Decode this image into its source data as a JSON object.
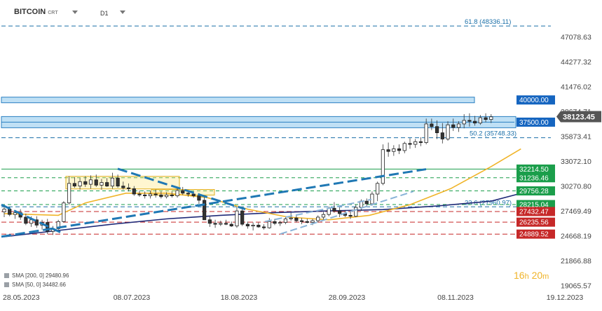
{
  "header": {
    "symbol": "BITCOIN",
    "symbol_sub": "CRT",
    "timeframe": "D1"
  },
  "indicators": [
    {
      "label": "SMA [200, 0]",
      "value": "29480.96",
      "color": "#1f2a78"
    },
    {
      "label": "SMA [50, 0]",
      "value": "34482.66",
      "color": "#f0b429"
    }
  ],
  "timer": {
    "hours": "16",
    "h_unit": "h",
    "minutes": "20",
    "m_unit": "m"
  },
  "chart_data": {
    "type": "candlestick",
    "title": "",
    "ylim": [
      19065.57,
      50000
    ],
    "y_ticks": [
      "47078.63",
      "44277.32",
      "41476.02",
      "38674.71",
      "35873.41",
      "33072.10",
      "30270.80",
      "27469.49",
      "24668.19",
      "21866.88",
      "19065.57"
    ],
    "x_ticks": [
      "28.05.2023",
      "08.07.2023",
      "18.08.2023",
      "28.09.2023",
      "08.11.2023",
      "19.12.2023"
    ],
    "last_price": {
      "label": "38123.45",
      "value": 38123.45,
      "color": "#555555"
    },
    "fib_levels": [
      {
        "label": "61.8 (48336.11)",
        "value": 48336.11
      },
      {
        "label": "50.2 (35748.33)",
        "value": 35748.33
      },
      {
        "label": "23.6 (27960.97)",
        "value": 27960.97
      }
    ],
    "resistance_zones": [
      {
        "label": "40000.00",
        "value": 40000.0,
        "color": "#1565c0"
      },
      {
        "label": "37500.00",
        "value": 37500.0,
        "color": "#1565c0"
      }
    ],
    "support_levels": [
      {
        "label": "32214.50",
        "value": 32214.5,
        "color": "#1b9e4b"
      },
      {
        "label": "31236.46",
        "value": 31236.46,
        "color": "#1b9e4b"
      },
      {
        "label": "29756.28",
        "value": 29756.28,
        "color": "#1b9e4b"
      },
      {
        "label": "28215.04",
        "value": 28215.04,
        "color": "#1b9e4b"
      },
      {
        "label": "27432.47",
        "value": 27432.47,
        "color": "#c62828"
      },
      {
        "label": "26235.56",
        "value": 26235.56,
        "color": "#c62828"
      },
      {
        "label": "24889.52",
        "value": 24889.52,
        "color": "#c62828"
      }
    ],
    "sma200": [
      {
        "d": 0,
        "v": 24600
      },
      {
        "d": 20,
        "v": 25300
      },
      {
        "d": 40,
        "v": 26000
      },
      {
        "d": 60,
        "v": 26600
      },
      {
        "d": 80,
        "v": 27000
      },
      {
        "d": 100,
        "v": 27300
      },
      {
        "d": 120,
        "v": 27500
      },
      {
        "d": 140,
        "v": 27650
      },
      {
        "d": 160,
        "v": 28050
      },
      {
        "d": 180,
        "v": 28600
      },
      {
        "d": 191,
        "v": 29480.96
      }
    ],
    "sma50": [
      {
        "d": 0,
        "v": 27200
      },
      {
        "d": 20,
        "v": 27000
      },
      {
        "d": 30,
        "v": 28400
      },
      {
        "d": 45,
        "v": 29500
      },
      {
        "d": 60,
        "v": 29500
      },
      {
        "d": 75,
        "v": 29000
      },
      {
        "d": 90,
        "v": 27700
      },
      {
        "d": 105,
        "v": 26800
      },
      {
        "d": 120,
        "v": 26500
      },
      {
        "d": 135,
        "v": 27000
      },
      {
        "d": 150,
        "v": 28200
      },
      {
        "d": 165,
        "v": 30000
      },
      {
        "d": 180,
        "v": 32500
      },
      {
        "d": 191,
        "v": 34482.66
      }
    ],
    "candles_ohlc": [
      {
        "d": 0,
        "o": 27400,
        "h": 28100,
        "l": 26800,
        "c": 27700
      },
      {
        "d": 2,
        "o": 27700,
        "h": 27950,
        "l": 26900,
        "c": 27100
      },
      {
        "d": 4,
        "o": 27100,
        "h": 27600,
        "l": 26600,
        "c": 27300
      },
      {
        "d": 6,
        "o": 27300,
        "h": 27700,
        "l": 26500,
        "c": 26800
      },
      {
        "d": 8,
        "o": 26800,
        "h": 27200,
        "l": 25900,
        "c": 26100
      },
      {
        "d": 10,
        "o": 26100,
        "h": 26900,
        "l": 25700,
        "c": 26500
      },
      {
        "d": 12,
        "o": 26500,
        "h": 26900,
        "l": 25600,
        "c": 25900
      },
      {
        "d": 14,
        "o": 25900,
        "h": 26500,
        "l": 25400,
        "c": 26200
      },
      {
        "d": 16,
        "o": 26200,
        "h": 26600,
        "l": 24900,
        "c": 25200
      },
      {
        "d": 18,
        "o": 25200,
        "h": 25800,
        "l": 24800,
        "c": 25500
      },
      {
        "d": 20,
        "o": 25500,
        "h": 26500,
        "l": 25200,
        "c": 26300
      },
      {
        "d": 22,
        "o": 26300,
        "h": 28600,
        "l": 26200,
        "c": 28400
      },
      {
        "d": 24,
        "o": 28400,
        "h": 31400,
        "l": 28200,
        "c": 30600
      },
      {
        "d": 26,
        "o": 30600,
        "h": 31300,
        "l": 30100,
        "c": 30300
      },
      {
        "d": 28,
        "o": 30300,
        "h": 31200,
        "l": 29900,
        "c": 30800
      },
      {
        "d": 30,
        "o": 30800,
        "h": 31400,
        "l": 30200,
        "c": 30500
      },
      {
        "d": 32,
        "o": 30500,
        "h": 31500,
        "l": 30000,
        "c": 31000
      },
      {
        "d": 34,
        "o": 31000,
        "h": 31600,
        "l": 30200,
        "c": 30400
      },
      {
        "d": 36,
        "o": 30400,
        "h": 31100,
        "l": 29900,
        "c": 30700
      },
      {
        "d": 38,
        "o": 30700,
        "h": 31200,
        "l": 30200,
        "c": 30300
      },
      {
        "d": 40,
        "o": 30300,
        "h": 31800,
        "l": 30000,
        "c": 31200
      },
      {
        "d": 42,
        "o": 31200,
        "h": 31600,
        "l": 30100,
        "c": 30300
      },
      {
        "d": 44,
        "o": 30300,
        "h": 30800,
        "l": 29900,
        "c": 30100
      },
      {
        "d": 46,
        "o": 30100,
        "h": 30600,
        "l": 29700,
        "c": 30000
      },
      {
        "d": 48,
        "o": 30000,
        "h": 30300,
        "l": 29200,
        "c": 29400
      },
      {
        "d": 50,
        "o": 29400,
        "h": 29800,
        "l": 29100,
        "c": 29300
      },
      {
        "d": 52,
        "o": 29300,
        "h": 29700,
        "l": 28900,
        "c": 29200
      },
      {
        "d": 54,
        "o": 29200,
        "h": 29800,
        "l": 28900,
        "c": 29400
      },
      {
        "d": 56,
        "o": 29400,
        "h": 29900,
        "l": 29000,
        "c": 29300
      },
      {
        "d": 58,
        "o": 29300,
        "h": 29700,
        "l": 28900,
        "c": 29100
      },
      {
        "d": 60,
        "o": 29100,
        "h": 29600,
        "l": 28900,
        "c": 29300
      },
      {
        "d": 62,
        "o": 29300,
        "h": 29700,
        "l": 29000,
        "c": 29200
      },
      {
        "d": 64,
        "o": 29200,
        "h": 30200,
        "l": 29000,
        "c": 29800
      },
      {
        "d": 66,
        "o": 29800,
        "h": 30200,
        "l": 29300,
        "c": 29500
      },
      {
        "d": 68,
        "o": 29500,
        "h": 29800,
        "l": 29100,
        "c": 29400
      },
      {
        "d": 70,
        "o": 29400,
        "h": 29700,
        "l": 29000,
        "c": 29200
      },
      {
        "d": 72,
        "o": 29200,
        "h": 29500,
        "l": 28300,
        "c": 28700
      },
      {
        "d": 74,
        "o": 28700,
        "h": 29200,
        "l": 26800,
        "c": 26500
      },
      {
        "d": 76,
        "o": 26500,
        "h": 26900,
        "l": 25700,
        "c": 26100
      },
      {
        "d": 78,
        "o": 26100,
        "h": 26500,
        "l": 25600,
        "c": 26000
      },
      {
        "d": 80,
        "o": 26000,
        "h": 26400,
        "l": 25800,
        "c": 26100
      },
      {
        "d": 82,
        "o": 26100,
        "h": 26500,
        "l": 25900,
        "c": 26000
      },
      {
        "d": 84,
        "o": 26000,
        "h": 26300,
        "l": 25700,
        "c": 25800
      },
      {
        "d": 86,
        "o": 25800,
        "h": 27900,
        "l": 25600,
        "c": 27500
      },
      {
        "d": 88,
        "o": 27500,
        "h": 27800,
        "l": 25800,
        "c": 26000
      },
      {
        "d": 90,
        "o": 26000,
        "h": 26300,
        "l": 25500,
        "c": 25800
      },
      {
        "d": 92,
        "o": 25800,
        "h": 26200,
        "l": 25300,
        "c": 25900
      },
      {
        "d": 94,
        "o": 25900,
        "h": 26200,
        "l": 25600,
        "c": 25700
      },
      {
        "d": 96,
        "o": 25700,
        "h": 26000,
        "l": 25400,
        "c": 25600
      },
      {
        "d": 98,
        "o": 25600,
        "h": 26700,
        "l": 25500,
        "c": 26300
      },
      {
        "d": 100,
        "o": 26300,
        "h": 26600,
        "l": 25900,
        "c": 26100
      },
      {
        "d": 102,
        "o": 26100,
        "h": 26400,
        "l": 25800,
        "c": 26200
      },
      {
        "d": 104,
        "o": 26200,
        "h": 26800,
        "l": 26000,
        "c": 26600
      },
      {
        "d": 106,
        "o": 26600,
        "h": 27300,
        "l": 26400,
        "c": 26700
      },
      {
        "d": 108,
        "o": 26700,
        "h": 27000,
        "l": 26200,
        "c": 26400
      },
      {
        "d": 110,
        "o": 26400,
        "h": 26700,
        "l": 26000,
        "c": 26300
      },
      {
        "d": 112,
        "o": 26300,
        "h": 26600,
        "l": 26100,
        "c": 26200
      },
      {
        "d": 114,
        "o": 26200,
        "h": 26600,
        "l": 25900,
        "c": 26400
      },
      {
        "d": 116,
        "o": 26400,
        "h": 27000,
        "l": 26200,
        "c": 26800
      },
      {
        "d": 118,
        "o": 26800,
        "h": 27400,
        "l": 26500,
        "c": 27100
      },
      {
        "d": 120,
        "o": 27100,
        "h": 28000,
        "l": 26900,
        "c": 27800
      },
      {
        "d": 122,
        "o": 27800,
        "h": 28500,
        "l": 27300,
        "c": 27500
      },
      {
        "d": 124,
        "o": 27500,
        "h": 27900,
        "l": 26800,
        "c": 27200
      },
      {
        "d": 126,
        "o": 27200,
        "h": 27600,
        "l": 26800,
        "c": 27000
      },
      {
        "d": 128,
        "o": 27000,
        "h": 27500,
        "l": 26600,
        "c": 26900
      },
      {
        "d": 130,
        "o": 26900,
        "h": 28200,
        "l": 26800,
        "c": 27900
      },
      {
        "d": 132,
        "o": 27900,
        "h": 28800,
        "l": 27500,
        "c": 28600
      },
      {
        "d": 134,
        "o": 28600,
        "h": 28900,
        "l": 28000,
        "c": 28300
      },
      {
        "d": 136,
        "o": 28300,
        "h": 29700,
        "l": 28100,
        "c": 29400
      },
      {
        "d": 138,
        "o": 29400,
        "h": 30800,
        "l": 28600,
        "c": 30600
      },
      {
        "d": 140,
        "o": 30600,
        "h": 35000,
        "l": 30400,
        "c": 34400
      },
      {
        "d": 142,
        "o": 34400,
        "h": 35200,
        "l": 33600,
        "c": 34200
      },
      {
        "d": 144,
        "o": 34200,
        "h": 34900,
        "l": 33700,
        "c": 34500
      },
      {
        "d": 146,
        "o": 34500,
        "h": 35000,
        "l": 33900,
        "c": 34300
      },
      {
        "d": 148,
        "o": 34300,
        "h": 35300,
        "l": 34000,
        "c": 35100
      },
      {
        "d": 150,
        "o": 35100,
        "h": 35700,
        "l": 34500,
        "c": 35000
      },
      {
        "d": 152,
        "o": 35000,
        "h": 35600,
        "l": 34600,
        "c": 35300
      },
      {
        "d": 154,
        "o": 35300,
        "h": 35800,
        "l": 34800,
        "c": 35200
      },
      {
        "d": 156,
        "o": 35200,
        "h": 37900,
        "l": 35000,
        "c": 37300
      },
      {
        "d": 158,
        "o": 37300,
        "h": 37900,
        "l": 36600,
        "c": 37000
      },
      {
        "d": 160,
        "o": 37000,
        "h": 37700,
        "l": 35600,
        "c": 36300
      },
      {
        "d": 162,
        "o": 36300,
        "h": 37400,
        "l": 35100,
        "c": 35600
      },
      {
        "d": 164,
        "o": 35600,
        "h": 37600,
        "l": 35400,
        "c": 37200
      },
      {
        "d": 166,
        "o": 37200,
        "h": 37900,
        "l": 36500,
        "c": 36900
      },
      {
        "d": 168,
        "o": 36900,
        "h": 37600,
        "l": 36400,
        "c": 37300
      },
      {
        "d": 170,
        "o": 37300,
        "h": 38400,
        "l": 36800,
        "c": 37700
      },
      {
        "d": 172,
        "o": 37700,
        "h": 38500,
        "l": 37000,
        "c": 37600
      },
      {
        "d": 174,
        "o": 37600,
        "h": 38200,
        "l": 37100,
        "c": 37400
      },
      {
        "d": 176,
        "o": 37400,
        "h": 38300,
        "l": 37200,
        "c": 38000
      },
      {
        "d": 178,
        "o": 38000,
        "h": 38500,
        "l": 37500,
        "c": 37800
      },
      {
        "d": 180,
        "o": 37800,
        "h": 38400,
        "l": 37400,
        "c": 38100
      }
    ],
    "colors": {
      "up": "#2e7d32",
      "down": "#c62828"
    },
    "grid": false
  }
}
